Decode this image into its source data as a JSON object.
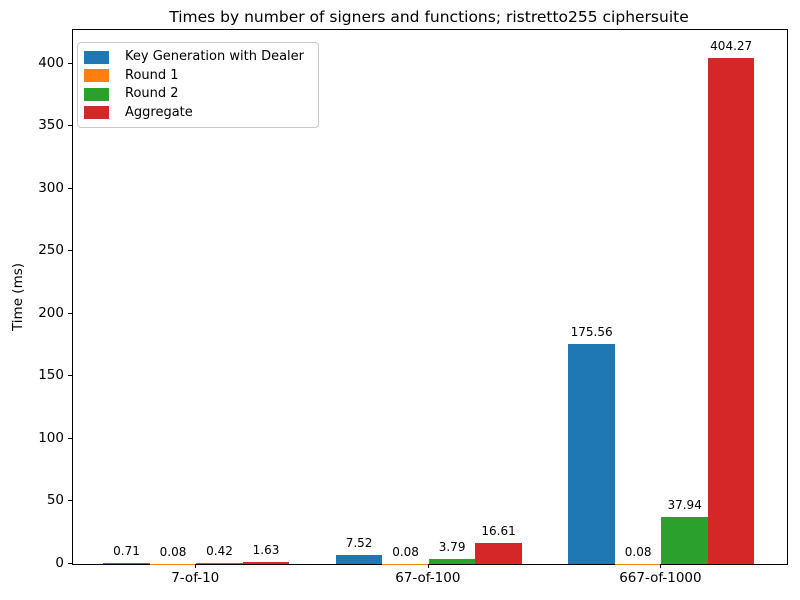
{
  "chart_data": {
    "type": "bar",
    "title": "Times by number of signers and functions; ristretto255 ciphersuite",
    "xlabel": "",
    "ylabel": "Time (ms)",
    "categories": [
      "7-of-10",
      "67-of-100",
      "667-of-1000"
    ],
    "series": [
      {
        "name": "Key Generation with Dealer",
        "color": "#1f77b4",
        "values": [
          0.71,
          7.52,
          175.56
        ]
      },
      {
        "name": "Round 1",
        "color": "#ff7f0e",
        "values": [
          0.08,
          0.08,
          0.08
        ]
      },
      {
        "name": "Round 2",
        "color": "#2ca02c",
        "values": [
          0.42,
          3.79,
          37.94
        ]
      },
      {
        "name": "Aggregate",
        "color": "#d62728",
        "values": [
          1.63,
          16.61,
          404.27
        ]
      }
    ],
    "bar_width": 0.2,
    "xlim": [
      -0.53,
      2.54
    ],
    "ylim": [
      0,
      427
    ],
    "yticks": [
      0,
      50,
      100,
      150,
      200,
      250,
      300,
      350,
      400
    ],
    "grid": false,
    "legend_position": "upper left"
  }
}
